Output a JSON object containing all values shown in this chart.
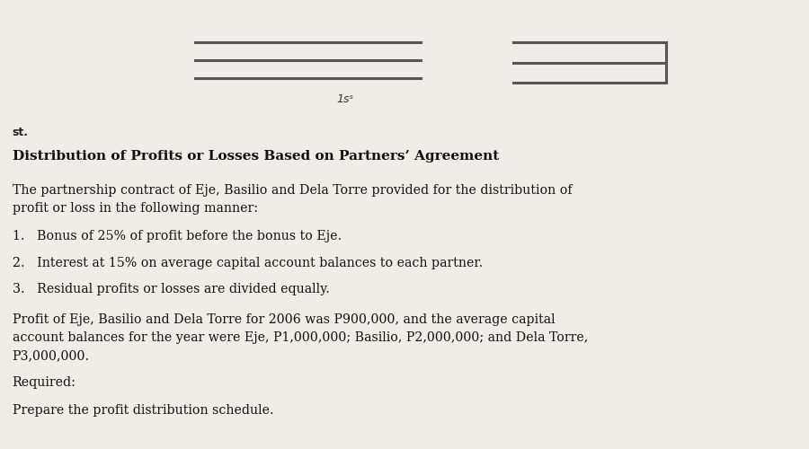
{
  "bg_color": "#f0ede8",
  "title": "Distribution of Profits or Losses Based on Partners’ Agreement",
  "paragraph1": "The partnership contract of Eje, Basilio and Dela Torre provided for the distribution of\nprofit or loss in the following manner:",
  "list_items": [
    "1.   Bonus of 25% of profit before the bonus to Eje.",
    "2.   Interest at 15% on average capital account balances to each partner.",
    "3.   Residual profits or losses are divided equally."
  ],
  "paragraph2": "Profit of Eje, Basilio and Dela Torre for 2006 was P900,000, and the average capital\naccount balances for the year were Eje, P1,000,000; Basilio, P2,000,000; and Dela Torre,\nP3,000,000.",
  "required_label": "Required:",
  "required_text": "Prepare the profit distribution schedule.",
  "header_note": "1sˢ",
  "corner_note": "st."
}
